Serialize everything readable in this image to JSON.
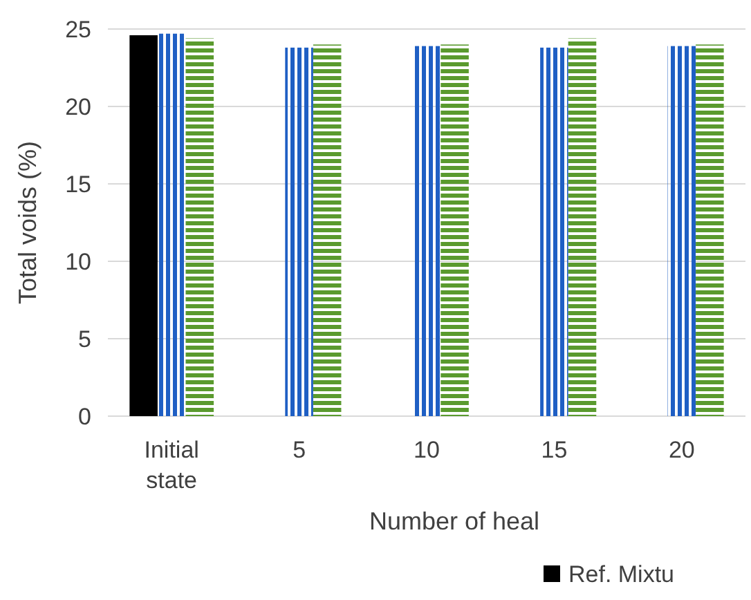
{
  "chart_data": {
    "type": "bar",
    "xlabel": "Number of heal",
    "ylabel": "Total voids (%)",
    "categories": [
      "Initial\nstate",
      "5",
      "10",
      "15",
      "20"
    ],
    "series": [
      {
        "name": "Ref. Mixtu",
        "color": "#000000",
        "values": [
          24.6,
          null,
          null,
          null,
          null
        ]
      },
      {
        "color": "#1f5fc4",
        "values": [
          24.7,
          23.8,
          23.9,
          23.8,
          23.9
        ]
      },
      {
        "color": "#5a9a2e",
        "values": [
          24.4,
          24.0,
          24.0,
          24.4,
          24.0
        ]
      }
    ],
    "ylim": [
      0,
      25
    ],
    "yticks": [
      0,
      5,
      10,
      15,
      20,
      25
    ],
    "grid": "y",
    "legend": "bottom"
  }
}
